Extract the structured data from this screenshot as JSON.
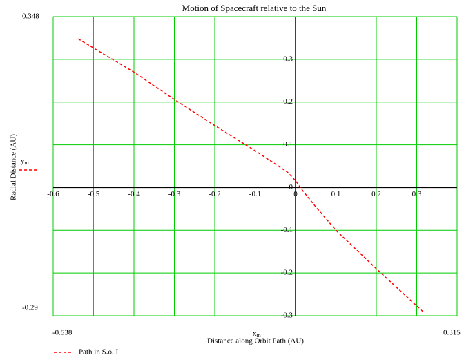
{
  "chart_data": {
    "type": "line",
    "title": "Motion of Spacecraft relative to the Sun",
    "x_label": "Distance along Orbit Path (AU)",
    "y_label": "Radial Distance (AU)",
    "x_variable": {
      "symbol": "x",
      "subscript": "m"
    },
    "y_variable": {
      "symbol": "y",
      "subscript": "m"
    },
    "x_range_labels": [
      "-0.538",
      "0.315"
    ],
    "y_range_labels": [
      "0.348",
      "-0.29"
    ],
    "x": [
      -0.538,
      -0.4,
      -0.3,
      -0.2,
      -0.1,
      -0.05,
      -0.02,
      0,
      0.02,
      0.05,
      0.1,
      0.2,
      0.315
    ],
    "series": [
      {
        "name": "Path in S.o. I",
        "color": "#ff0000",
        "dashed": true,
        "values": [
          0.348,
          0.27,
          0.206,
          0.145,
          0.086,
          0.055,
          0.036,
          0.016,
          -0.01,
          -0.045,
          -0.1,
          -0.19,
          -0.29
        ]
      }
    ],
    "xlim": [
      -0.6,
      0.4
    ],
    "ylim": [
      -0.3,
      0.4
    ],
    "xticks": [
      -0.6,
      -0.5,
      -0.4,
      -0.3,
      -0.2,
      -0.1,
      0,
      0.1,
      0.2,
      0.3
    ],
    "yticks": [
      -0.3,
      -0.2,
      -0.1,
      0,
      0.1,
      0.2,
      0.3
    ],
    "grid": true,
    "grid_color": "#00cc00"
  }
}
